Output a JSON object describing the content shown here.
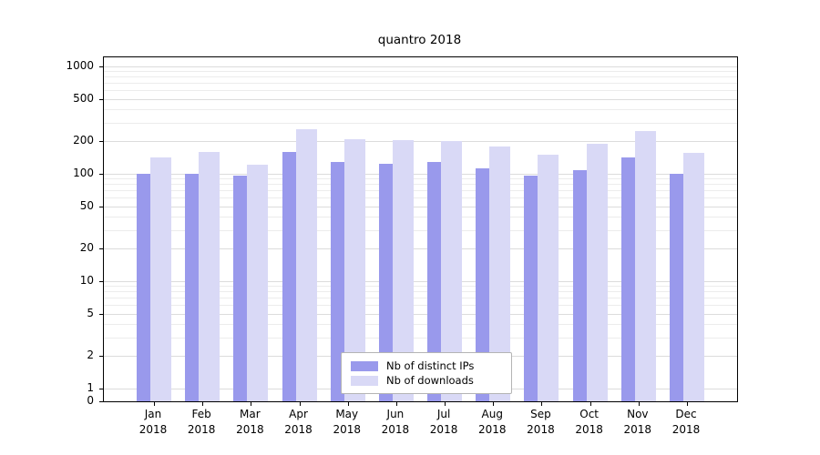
{
  "chart": {
    "title": "quantro 2018",
    "colors": {
      "ips_bar": "#9999ec",
      "downloads_bar": "#d9d9f6",
      "grid_major": "#dcdcdc",
      "grid_minor": "#ececec",
      "axis": "#000000",
      "background": "#ffffff"
    }
  },
  "chart_data": {
    "type": "bar",
    "title": "quantro 2018",
    "categories": [
      "Jan 2018",
      "Feb 2018",
      "Mar 2018",
      "Apr 2018",
      "May 2018",
      "Jun 2018",
      "Jul 2018",
      "Aug 2018",
      "Sep 2018",
      "Oct 2018",
      "Nov 2018",
      "Dec 2018"
    ],
    "months": [
      "Jan",
      "Feb",
      "Mar",
      "Apr",
      "May",
      "Jun",
      "Jul",
      "Aug",
      "Sep",
      "Oct",
      "Nov",
      "Dec"
    ],
    "year": "2018",
    "series": [
      {
        "name": "Nb of distinct IPs",
        "color": "#9999ec",
        "values": [
          100,
          101,
          97,
          160,
          130,
          124,
          130,
          112,
          97,
          108,
          143,
          100
        ]
      },
      {
        "name": "Nb of downloads",
        "color": "#d9d9f6",
        "values": [
          143,
          160,
          122,
          262,
          210,
          204,
          200,
          180,
          150,
          190,
          250,
          157
        ]
      }
    ],
    "xlabel": "",
    "ylabel": "",
    "y_scale": "log-with-zero",
    "y_ticks": [
      0,
      1,
      2,
      5,
      10,
      20,
      50,
      100,
      200,
      500,
      1000
    ],
    "ylim": [
      0,
      1220
    ],
    "grid": true,
    "legend_position": "lower center"
  }
}
